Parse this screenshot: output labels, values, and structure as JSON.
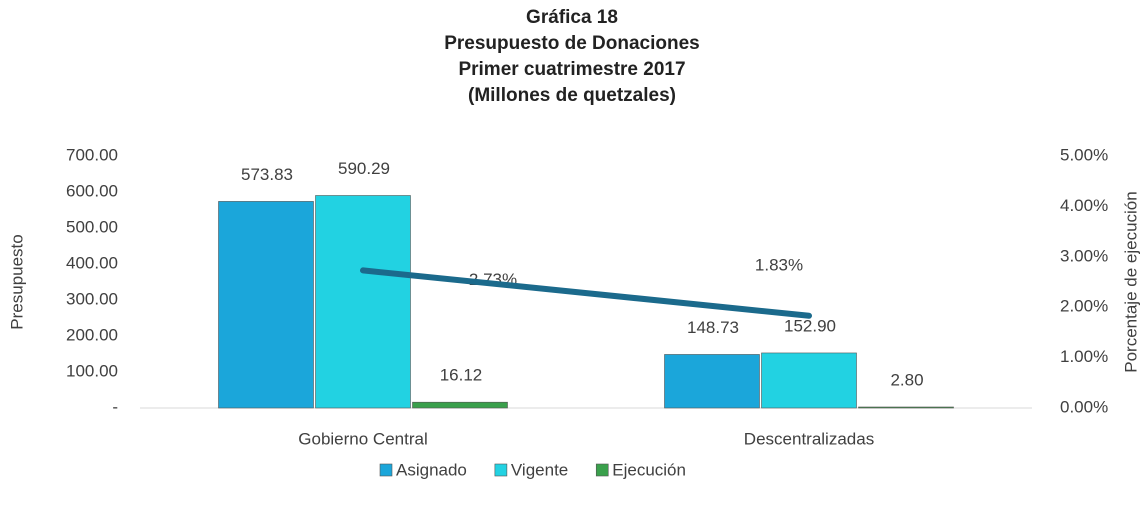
{
  "chart_data": {
    "type": "bar",
    "title": [
      "Gráfica 18",
      "Presupuesto de Donaciones",
      "Primer cuatrimestre 2017",
      "(Millones de quetzales)"
    ],
    "y_label": "Presupuesto",
    "y2_label": "Porcentaje de ejecución",
    "categories": [
      "Gobierno Central",
      "Descentralizadas"
    ],
    "series": [
      {
        "name": "Asignado",
        "color": "#1ba6da",
        "values": [
          573.83,
          148.73
        ],
        "value_labels": [
          "573.83",
          "148.73"
        ]
      },
      {
        "name": "Vigente",
        "color": "#22d2e2",
        "values": [
          590.29,
          152.9
        ],
        "value_labels": [
          "590.29",
          "152.90"
        ]
      },
      {
        "name": "Ejecución",
        "color": "#3aa04c",
        "values": [
          16.12,
          2.8
        ],
        "value_labels": [
          "16.12",
          "2.80"
        ]
      },
      {
        "name": "Porcentaje de ejecución",
        "type": "line",
        "axis": "y2",
        "color": "#1b6a8c",
        "values": [
          2.73,
          1.83
        ],
        "value_labels": [
          "2.73%",
          "1.83%"
        ]
      }
    ],
    "ylim": [
      0,
      700
    ],
    "yticks": [
      {
        "value": 0,
        "label": "-"
      },
      {
        "value": 100,
        "label": "100.00"
      },
      {
        "value": 200,
        "label": "200.00"
      },
      {
        "value": 300,
        "label": "300.00"
      },
      {
        "value": 400,
        "label": "400.00"
      },
      {
        "value": 500,
        "label": "500.00"
      },
      {
        "value": 600,
        "label": "600.00"
      },
      {
        "value": 700,
        "label": "700.00"
      }
    ],
    "y2lim": [
      0,
      5
    ],
    "y2ticks": [
      {
        "value": 0,
        "label": "0.00%"
      },
      {
        "value": 1,
        "label": "1.00%"
      },
      {
        "value": 2,
        "label": "2.00%"
      },
      {
        "value": 3,
        "label": "3.00%"
      },
      {
        "value": 4,
        "label": "4.00%"
      },
      {
        "value": 5,
        "label": "5.00%"
      }
    ],
    "grid": false,
    "legend": "bottom"
  }
}
